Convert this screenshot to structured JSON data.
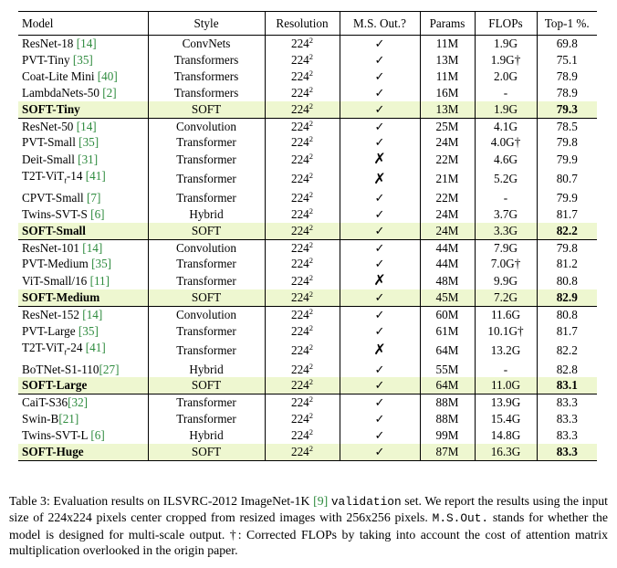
{
  "table": {
    "headers": [
      "Model",
      "Style",
      "Resolution",
      "M.S. Out.?",
      "Params",
      "FLOPs",
      "Top-1 %."
    ],
    "resolution_base": "224",
    "resolution_exp": "2",
    "groups": [
      [
        {
          "model": "ResNet-18 ",
          "cite": "[14]",
          "style": "ConvNets",
          "ms": "check",
          "params": "11M",
          "flops": "1.9G",
          "top1": "69.8"
        },
        {
          "model": "PVT-Tiny ",
          "cite": "[35]",
          "style": "Transformers",
          "ms": "check",
          "params": "13M",
          "flops": "1.9G†",
          "top1": "75.1"
        },
        {
          "model": "Coat-Lite Mini ",
          "cite": "[40]",
          "style": "Transformers",
          "ms": "check",
          "params": "11M",
          "flops": "2.0G",
          "top1": "78.9"
        },
        {
          "model": "LambdaNets-50 ",
          "cite": "[2]",
          "style": "Transformers",
          "ms": "check",
          "params": "16M",
          "flops": "-",
          "top1": "78.9"
        },
        {
          "model": "SOFT-Tiny",
          "cite": "",
          "style": "SOFT",
          "ms": "check",
          "params": "13M",
          "flops": "1.9G",
          "top1": "79.3",
          "soft": true
        }
      ],
      [
        {
          "model": "ResNet-50 ",
          "cite": "[14]",
          "style": "Convolution",
          "ms": "check",
          "params": "25M",
          "flops": "4.1G",
          "top1": "78.5"
        },
        {
          "model": "PVT-Small ",
          "cite": "[35]",
          "style": "Transformer",
          "ms": "check",
          "params": "24M",
          "flops": "4.0G†",
          "top1": "79.8"
        },
        {
          "model": "Deit-Small ",
          "cite": "[31]",
          "style": "Transformer",
          "ms": "cross",
          "params": "22M",
          "flops": "4.6G",
          "top1": "79.9"
        },
        {
          "model": "T2T-ViT",
          "sub": "t",
          "suffix": "-14 ",
          "cite": "[41]",
          "style": "Transformer",
          "ms": "cross",
          "params": "21M",
          "flops": "5.2G",
          "top1": "80.7"
        },
        {
          "model": "CPVT-Small ",
          "cite": "[7]",
          "style": "Transformer",
          "ms": "check",
          "params": "22M",
          "flops": "-",
          "top1": "79.9"
        },
        {
          "model": "Twins-SVT-S ",
          "cite": "[6]",
          "style": "Hybrid",
          "ms": "check",
          "params": "24M",
          "flops": "3.7G",
          "top1": "81.7"
        },
        {
          "model": "SOFT-Small",
          "cite": "",
          "style": "SOFT",
          "ms": "check",
          "params": "24M",
          "flops": "3.3G",
          "top1": "82.2",
          "soft": true
        }
      ],
      [
        {
          "model": "ResNet-101 ",
          "cite": "[14]",
          "style": "Convolution",
          "ms": "check",
          "params": "44M",
          "flops": "7.9G",
          "top1": "79.8"
        },
        {
          "model": "PVT-Medium ",
          "cite": "[35]",
          "style": "Transformer",
          "ms": "check",
          "params": "44M",
          "flops": "7.0G†",
          "top1": "81.2"
        },
        {
          "model": "ViT-Small/16 ",
          "cite": "[11]",
          "style": "Transformer",
          "ms": "cross",
          "params": "48M",
          "flops": "9.9G",
          "top1": "80.8"
        },
        {
          "model": "SOFT-Medium",
          "cite": "",
          "style": "SOFT",
          "ms": "check",
          "params": "45M",
          "flops": "7.2G",
          "top1": "82.9",
          "soft": true
        }
      ],
      [
        {
          "model": "ResNet-152 ",
          "cite": "[14]",
          "style": "Convolution",
          "ms": "check",
          "params": "60M",
          "flops": "11.6G",
          "top1": "80.8"
        },
        {
          "model": "PVT-Large ",
          "cite": "[35]",
          "style": "Transformer",
          "ms": "check",
          "params": "61M",
          "flops": "10.1G†",
          "top1": "81.7"
        },
        {
          "model": "T2T-ViT",
          "sub": "t",
          "suffix": "-24 ",
          "cite": "[41]",
          "style": "Transformer",
          "ms": "cross",
          "params": "64M",
          "flops": "13.2G",
          "top1": "82.2"
        },
        {
          "model": "BoTNet-S1-110",
          "cite": "[27]",
          "style": "Hybrid",
          "ms": "check",
          "params": "55M",
          "flops": "-",
          "top1": "82.8"
        },
        {
          "model": "SOFT-Large",
          "cite": "",
          "style": "SOFT",
          "ms": "check",
          "params": "64M",
          "flops": "11.0G",
          "top1": "83.1",
          "soft": true
        }
      ],
      [
        {
          "model": "CaiT-S36",
          "cite": "[32]",
          "style": "Transformer",
          "ms": "check",
          "params": "88M",
          "flops": "13.9G",
          "top1": "83.3"
        },
        {
          "model": "Swin-B",
          "cite": "[21]",
          "style": "Transformer",
          "ms": "check",
          "params": "88M",
          "flops": "15.4G",
          "top1": "83.3"
        },
        {
          "model": "Twins-SVT-L ",
          "cite": "[6]",
          "style": "Hybrid",
          "ms": "check",
          "params": "99M",
          "flops": "14.8G",
          "top1": "83.3"
        },
        {
          "model": "SOFT-Huge",
          "cite": "",
          "style": "SOFT",
          "ms": "check",
          "params": "87M",
          "flops": "16.3G",
          "top1": "83.3",
          "soft": true
        }
      ]
    ]
  },
  "caption": {
    "part1": "Table 3: Evaluation results on ILSVRC-2012 ImageNet-1K ",
    "cite": "[9]",
    "part2": " ",
    "mono1": "validation",
    "part3": " set. We report the results using the input size of 224x224 pixels center cropped from resized images with 256x256 pixels. ",
    "mono2": "M.S.Out.",
    "part4": " stands for whether the model is designed for multi-scale output. †: Corrected FLOPs by taking into account the cost of attention matrix multiplication overlooked in the origin paper."
  },
  "symbols": {
    "check": "✓",
    "cross": "✗"
  },
  "colors": {
    "soft_row_bg": "#eef7d0",
    "citation": "#2e8b3e"
  }
}
